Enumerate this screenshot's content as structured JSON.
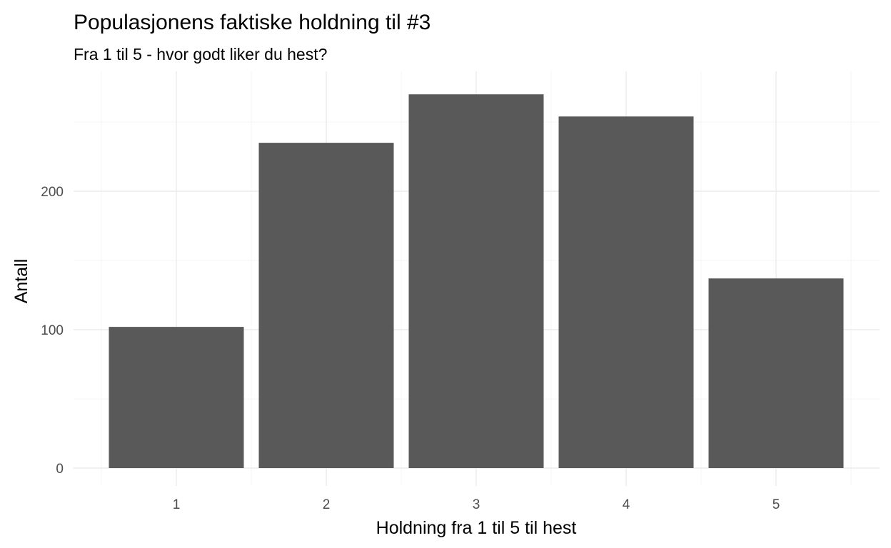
{
  "chart_data": {
    "type": "bar",
    "title": "Populasjonens faktiske holdning til #3",
    "subtitle": "Fra 1 til 5 - hvor godt liker du hest?",
    "xlabel": "Holdning fra 1 til 5 til hest",
    "ylabel": "Antall",
    "categories": [
      "1",
      "2",
      "3",
      "4",
      "5"
    ],
    "values": [
      102,
      235,
      270,
      254,
      137
    ],
    "yticks": [
      0,
      100,
      200
    ],
    "ylim": [
      0,
      280
    ],
    "grid": true,
    "bar_color": "#595959"
  }
}
